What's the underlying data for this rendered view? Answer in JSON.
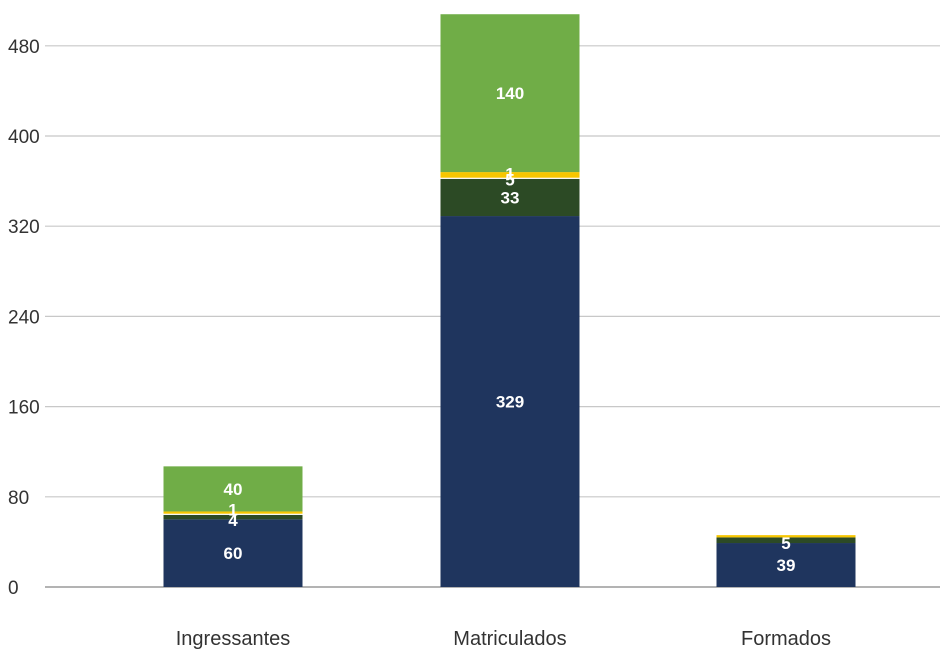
{
  "chart_data": {
    "type": "bar",
    "stacked": true,
    "categories": [
      "Ingressantes",
      "Matriculados",
      "Formados"
    ],
    "series": [
      {
        "color": "#1f355e",
        "values": [
          60,
          329,
          39
        ]
      },
      {
        "color": "#2c4a25",
        "values": [
          4,
          33,
          5
        ]
      },
      {
        "color": "#ffffff",
        "values": [
          1,
          1,
          0
        ]
      },
      {
        "color": "#f7c600",
        "values": [
          2,
          5,
          2
        ]
      },
      {
        "color": "#70ad47",
        "values": [
          40,
          140,
          0
        ]
      }
    ],
    "data_labels": [
      {
        "category": 0,
        "series": 0,
        "text": "60"
      },
      {
        "category": 0,
        "series": 1,
        "text": "4"
      },
      {
        "category": 0,
        "series": 2,
        "text": "1"
      },
      {
        "category": 0,
        "series": 4,
        "text": "40"
      },
      {
        "category": 1,
        "series": 0,
        "text": "329"
      },
      {
        "category": 1,
        "series": 1,
        "text": "33"
      },
      {
        "category": 1,
        "series": 2,
        "text": "1"
      },
      {
        "category": 1,
        "series": 3,
        "text": "5"
      },
      {
        "category": 1,
        "series": 4,
        "text": "140"
      },
      {
        "category": 2,
        "series": 0,
        "text": "39"
      },
      {
        "category": 2,
        "series": 1,
        "text": "5"
      }
    ],
    "yticks": [
      0,
      80,
      160,
      240,
      320,
      400,
      480
    ],
    "ylim": [
      0,
      520
    ],
    "grid": true,
    "title": "",
    "xlabel": "",
    "ylabel": ""
  }
}
